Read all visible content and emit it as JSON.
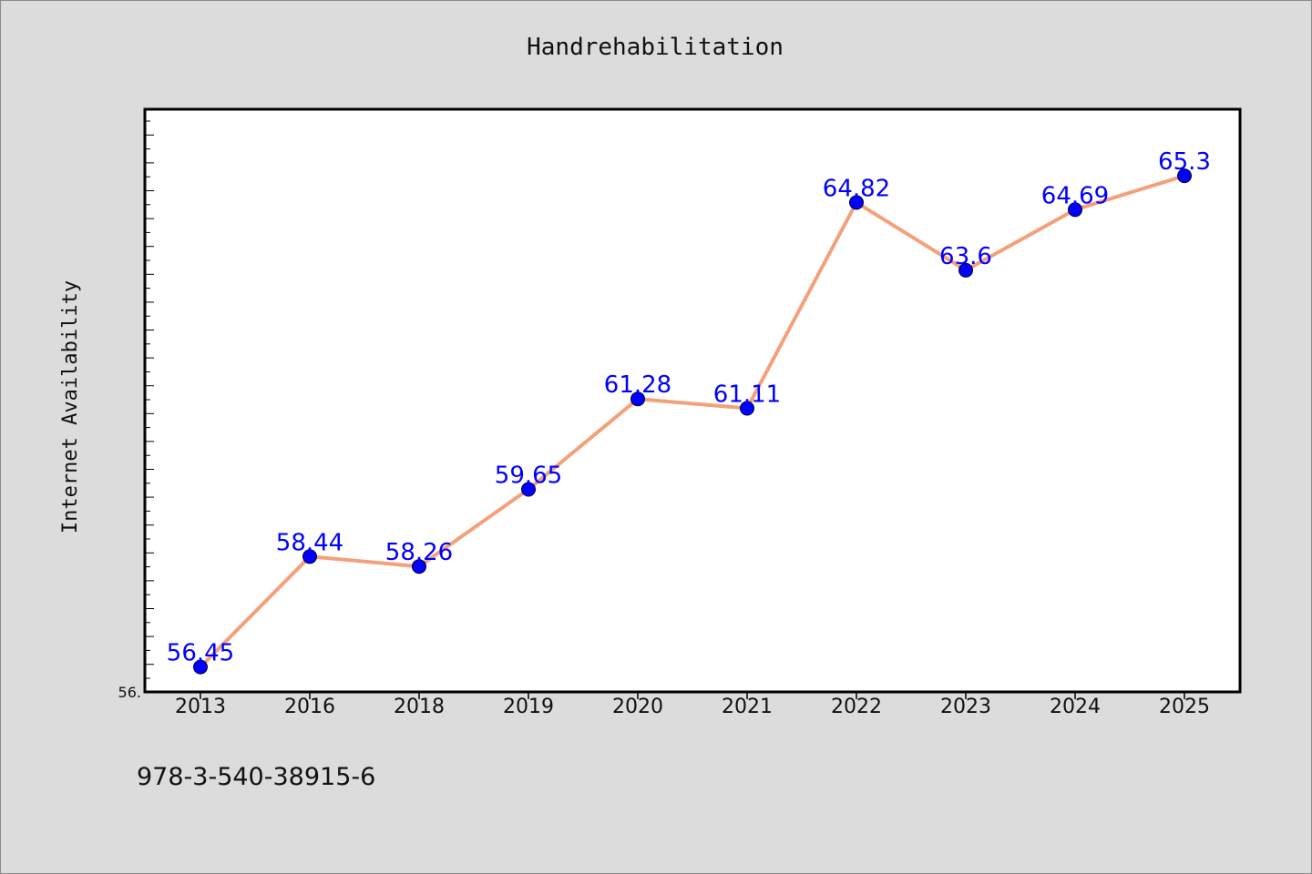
{
  "chart_data": {
    "type": "line",
    "title": "Handrehabilitation",
    "xlabel": "",
    "ylabel": "Internet Availability",
    "categories": [
      "2013",
      "2016",
      "2018",
      "2019",
      "2020",
      "2021",
      "2022",
      "2023",
      "2024",
      "2025"
    ],
    "series": [
      {
        "values": [
          56.45,
          58.44,
          58.26,
          59.65,
          61.28,
          61.11,
          64.82,
          63.6,
          64.69,
          65.3
        ]
      }
    ],
    "data_labels": [
      "56.45",
      "58.44",
      "58.26",
      "59.65",
      "61.28",
      "61.11",
      "64.82",
      "63.6",
      "64.69",
      "65.3"
    ],
    "ylim": [
      56.0,
      66.5
    ],
    "y_tick_labels": [
      "56."
    ],
    "grid": false,
    "legend": "none",
    "line_color": "#f4a07a",
    "marker_color": "#0000ff",
    "label_color": "#0000ff",
    "plot_background": "#ffffff",
    "page_background": "#dcdcdc"
  },
  "footer_text": "978-3-540-38915-6"
}
